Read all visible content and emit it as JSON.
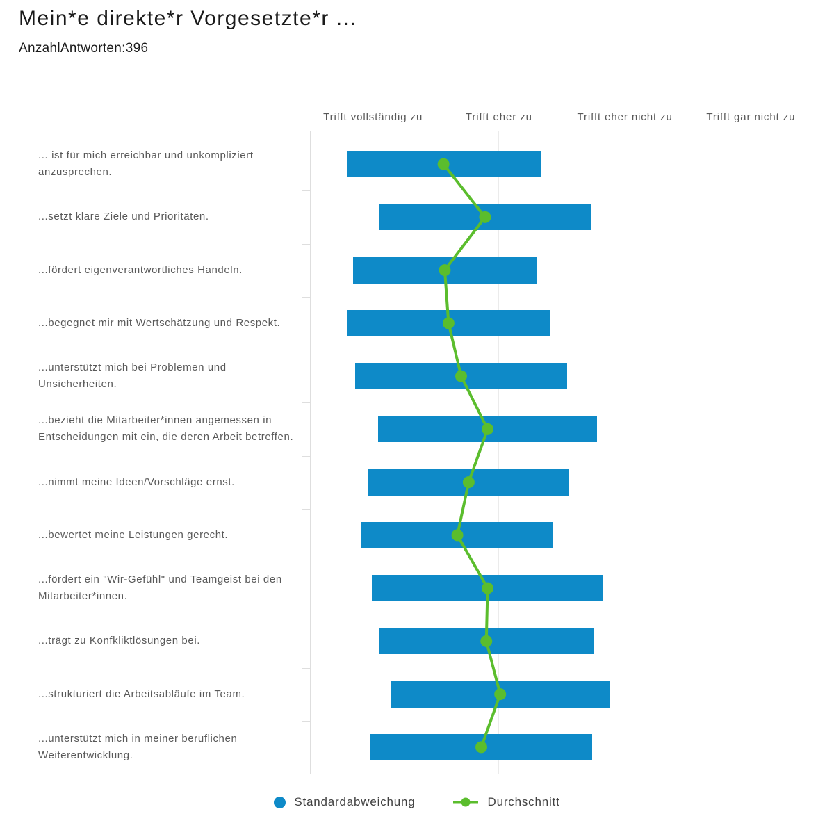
{
  "title": "Mein*e direkte*r Vorgesetzte*r ...",
  "subtitle": "AnzahlAntworten:396",
  "legend": {
    "std_label": "Standardabweichung",
    "mean_label": "Durchschnitt"
  },
  "colors": {
    "bar": "#0e8ac8",
    "line": "#5bbd2d",
    "grid": "#ebebeb",
    "axis": "#dedede",
    "text_muted": "#595959",
    "text_dark": "#1a1a1a"
  },
  "chart_data": {
    "type": "bar",
    "orientation": "horizontal",
    "bar_rule": "bar spans mean - std to mean + std; dot marks mean",
    "legend_position": "bottom",
    "x_axis": {
      "min": 0.5,
      "max": 4.5,
      "grid": true,
      "labels_position": "top",
      "tick_values": [
        1,
        2,
        3,
        4
      ],
      "tick_labels": [
        "Trifft vollständig zu",
        "Trifft eher zu",
        "Trifft eher nicht zu",
        "Trifft gar nicht zu"
      ]
    },
    "series_names": [
      "Standardabweichung",
      "Durchschnitt"
    ],
    "rows": [
      {
        "label": "... ist für mich erreichbar und unkompliziert anzusprechen.",
        "mean": 1.56,
        "std": 0.77
      },
      {
        "label": "...setzt klare Ziele und Prioritäten.",
        "mean": 1.89,
        "std": 0.84
      },
      {
        "label": "...fördert eigenverantwortliches Handeln.",
        "mean": 1.57,
        "std": 0.73
      },
      {
        "label": "...begegnet mir mit Wertschätzung und Respekt.",
        "mean": 1.6,
        "std": 0.81
      },
      {
        "label": "...unterstützt mich bei Problemen und Unsicherheiten.",
        "mean": 1.7,
        "std": 0.84
      },
      {
        "label": "...bezieht die Mitarbeiter*innen angemessen in Entscheidungen mit ein, die deren Arbeit betreffen.",
        "mean": 1.91,
        "std": 0.87
      },
      {
        "label": "...nimmt meine Ideen/Vorschläge ernst.",
        "mean": 1.76,
        "std": 0.8
      },
      {
        "label": "...bewertet meine Leistungen gerecht.",
        "mean": 1.67,
        "std": 0.76
      },
      {
        "label": "...fördert ein \"Wir-Gefühl\" und Teamgeist bei den Mitarbeiter*innen.",
        "mean": 1.91,
        "std": 0.92
      },
      {
        "label": "...trägt zu Konfkliktlösungen bei.",
        "mean": 1.9,
        "std": 0.85
      },
      {
        "label": "...strukturiert die Arbeitsabläufe im Team.",
        "mean": 2.01,
        "std": 0.87
      },
      {
        "label": "...unterstützt mich in meiner beruflichen Weiterentwicklung.",
        "mean": 1.86,
        "std": 0.88
      }
    ]
  }
}
